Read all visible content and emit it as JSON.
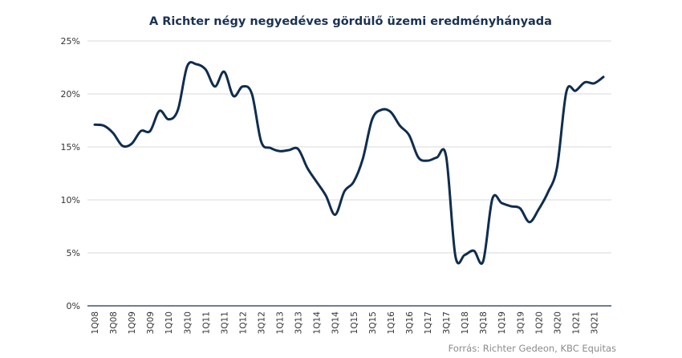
{
  "chart_data": {
    "type": "line",
    "title": "A Richter négy negyedéves gördülő üzemi eredményhányada",
    "source": "Forrás: Richter Gedeon, KBC Equitas",
    "xlabel": "",
    "ylabel": "",
    "ylim": [
      0,
      25
    ],
    "yticks": [
      "0%",
      "5%",
      "10%",
      "15%",
      "20%",
      "25%"
    ],
    "grid": true,
    "line_color": "#0f2d4f",
    "x": [
      "1Q08",
      "2Q08",
      "3Q08",
      "4Q08",
      "1Q09",
      "2Q09",
      "3Q09",
      "4Q09",
      "1Q10",
      "2Q10",
      "3Q10",
      "4Q10",
      "1Q11",
      "2Q11",
      "3Q11",
      "4Q11",
      "1Q12",
      "2Q12",
      "3Q12",
      "4Q12",
      "1Q13",
      "2Q13",
      "3Q13",
      "4Q13",
      "1Q14",
      "2Q14",
      "3Q14",
      "4Q14",
      "1Q15",
      "2Q15",
      "3Q15",
      "4Q15",
      "1Q16",
      "2Q16",
      "3Q16",
      "4Q16",
      "1Q17",
      "2Q17",
      "3Q17",
      "4Q17",
      "1Q18",
      "2Q18",
      "3Q18",
      "4Q18",
      "1Q19",
      "2Q19",
      "3Q19",
      "4Q19",
      "1Q20",
      "2Q20",
      "3Q20",
      "4Q20",
      "1Q21",
      "2Q21",
      "3Q21",
      "4Q21"
    ],
    "xtick_labels": [
      "1Q08",
      "3Q08",
      "1Q09",
      "3Q09",
      "1Q10",
      "3Q10",
      "1Q11",
      "3Q11",
      "1Q12",
      "3Q12",
      "1Q13",
      "3Q13",
      "1Q14",
      "3Q14",
      "1Q15",
      "3Q15",
      "1Q16",
      "3Q16",
      "1Q17",
      "3Q17",
      "1Q18",
      "3Q18",
      "1Q19",
      "3Q19",
      "1Q20",
      "3Q20",
      "1Q21",
      "3Q21"
    ],
    "values": [
      17.1,
      17.0,
      16.3,
      15.1,
      15.3,
      16.5,
      16.5,
      18.4,
      17.6,
      18.5,
      22.6,
      22.8,
      22.3,
      20.7,
      22.1,
      19.8,
      20.7,
      20.0,
      15.5,
      14.9,
      14.6,
      14.7,
      14.8,
      13.0,
      11.7,
      10.4,
      8.6,
      10.8,
      11.7,
      13.9,
      17.6,
      18.5,
      18.3,
      17.0,
      16.1,
      14.0,
      13.7,
      14.0,
      14.1,
      4.7,
      4.8,
      5.2,
      4.2,
      10.1,
      9.7,
      9.4,
      9.2,
      7.9,
      9.1,
      10.7,
      13.1,
      20.2,
      20.3,
      21.1,
      21.0,
      21.6
    ]
  }
}
